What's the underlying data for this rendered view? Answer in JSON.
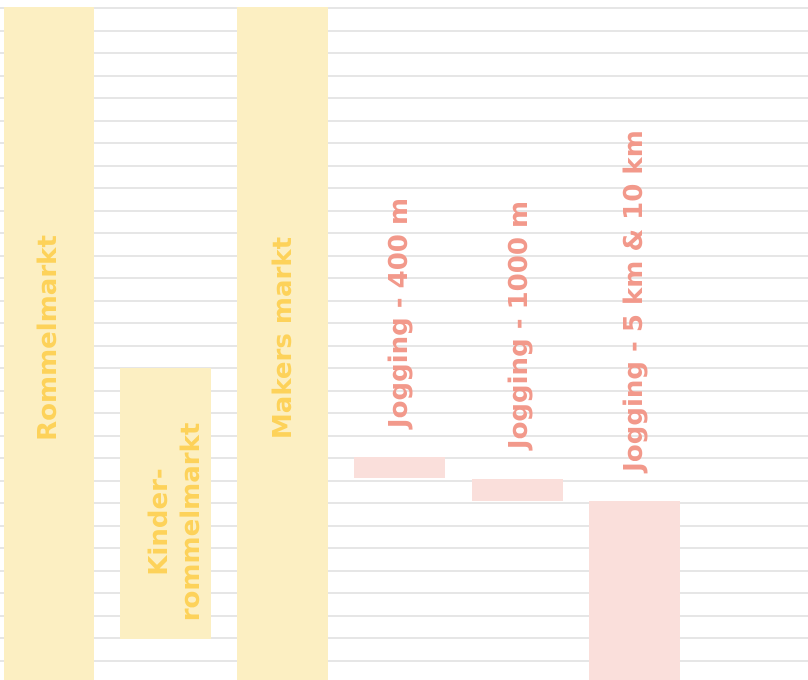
{
  "colors": {
    "yellow_bar": "#fcefc2",
    "yellow_text": "#fdd25a",
    "pink_bar": "#fadfdb",
    "pink_text": "#f2998b",
    "gridline": "#e6e6e6",
    "background": "#ffffff"
  },
  "events": [
    {
      "id": "rommelmarkt",
      "label": "Rommelmarkt",
      "color": "yellow"
    },
    {
      "id": "kinderrommelmarkt",
      "label": "Kinder-\nrommelmarkt",
      "color": "yellow"
    },
    {
      "id": "makers-markt",
      "label": "Makers markt",
      "color": "yellow"
    },
    {
      "id": "jogging-400",
      "label": "Jogging - 400 m",
      "color": "pink"
    },
    {
      "id": "jogging-1000",
      "label": "Jogging - 1000 m",
      "color": "pink"
    },
    {
      "id": "jogging-5-10",
      "label": "Jogging - 5 km & 10 km",
      "color": "pink"
    }
  ]
}
